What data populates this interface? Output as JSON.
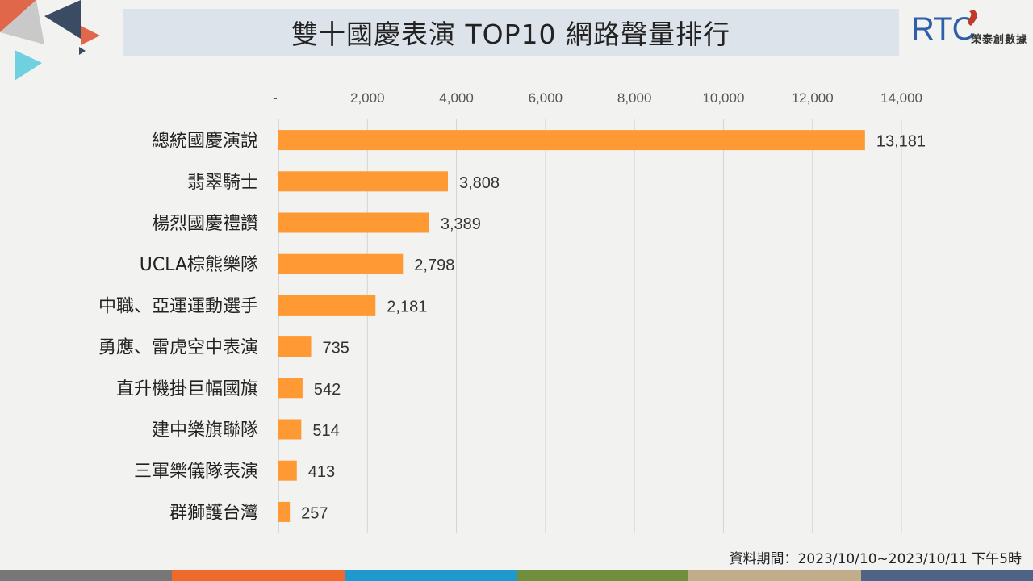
{
  "title": "雙十國慶表演 TOP10 網路聲量排行",
  "brand": {
    "logo_text": "RTC",
    "name": "榮泰創數據"
  },
  "source_note": "資料期間：2023/10/10~2023/10/11 下午5時",
  "colors": {
    "bar": "#ff9933",
    "grid": "#d4d4d4",
    "title_bg": "#dde3ea",
    "footer": [
      "#777777",
      "#ed6a2c",
      "#1f98cf",
      "#6f8f3d",
      "#c2ad8a",
      "#4f6386"
    ]
  },
  "chart_data": {
    "type": "bar",
    "orientation": "horizontal",
    "categories": [
      "總統國慶演說",
      "翡翠騎士",
      "楊烈國慶禮讚",
      "UCLA棕熊樂隊",
      "中職、亞運運動選手",
      "勇應、雷虎空中表演",
      "直升機掛巨幅國旗",
      "建中樂旗聯隊",
      "三軍樂儀隊表演",
      "群獅護台灣"
    ],
    "values": [
      13181,
      3808,
      3389,
      2798,
      2181,
      735,
      542,
      514,
      413,
      257
    ],
    "value_labels": [
      "13,181",
      "3,808",
      "3,389",
      "2,798",
      "2,181",
      "735",
      "542",
      "514",
      "413",
      "257"
    ],
    "xlim": [
      0,
      14000
    ],
    "xticks": [
      0,
      2000,
      4000,
      6000,
      8000,
      10000,
      12000,
      14000
    ],
    "xtick_labels": [
      "-",
      "2,000",
      "4,000",
      "6,000",
      "8,000",
      "10,000",
      "12,000",
      "14,000"
    ],
    "x_axis_position": "top",
    "grid": true,
    "legend": false
  }
}
